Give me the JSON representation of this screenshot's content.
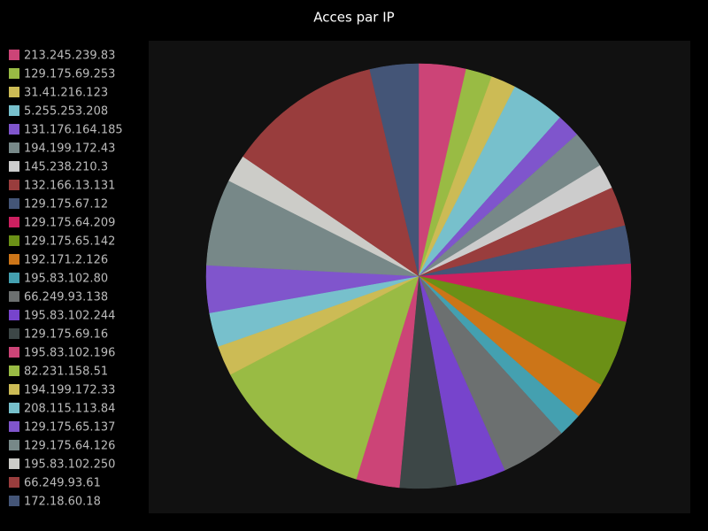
{
  "chart_data": {
    "type": "pie",
    "title": "Acces par IP",
    "legend": "left",
    "categories": [
      "213.245.239.83",
      "129.175.69.253",
      "31.41.216.123",
      "5.255.253.208",
      "131.176.164.185",
      "194.199.172.43",
      "145.238.210.3",
      "132.166.13.131",
      "129.175.67.12",
      "129.175.64.209",
      "129.175.65.142",
      "192.171.2.126",
      "195.83.102.80",
      "66.249.93.138",
      "195.83.102.244",
      "129.175.69.16",
      "195.83.102.196",
      "82.231.158.51",
      "194.199.172.33",
      "208.115.113.84",
      "129.175.65.137",
      "129.175.64.126",
      "195.83.102.250",
      "66.249.93.61",
      "172.18.60.18"
    ],
    "values": [
      3.6,
      2.0,
      1.9,
      4.1,
      1.8,
      2.9,
      1.9,
      3.0,
      2.9,
      4.4,
      5.1,
      2.9,
      1.8,
      5.1,
      3.8,
      4.3,
      3.3,
      12.6,
      2.3,
      2.6,
      3.6,
      6.6,
      2.1,
      11.8,
      3.7
    ],
    "colors": [
      "#cc4477",
      "#99bb44",
      "#ccbb55",
      "#77c0cc",
      "#7f55cc",
      "#778888",
      "#cccccc",
      "#993d3d",
      "#445577",
      "#cc2060",
      "#6b9016",
      "#cc7518",
      "#44a0b0",
      "#6c7070",
      "#7744cc",
      "#3d4747",
      "#cc4477",
      "#99bb44",
      "#ccbb55",
      "#77c0cc",
      "#8055cc",
      "#778888",
      "#ccccc8",
      "#993d3d",
      "#445577"
    ]
  }
}
